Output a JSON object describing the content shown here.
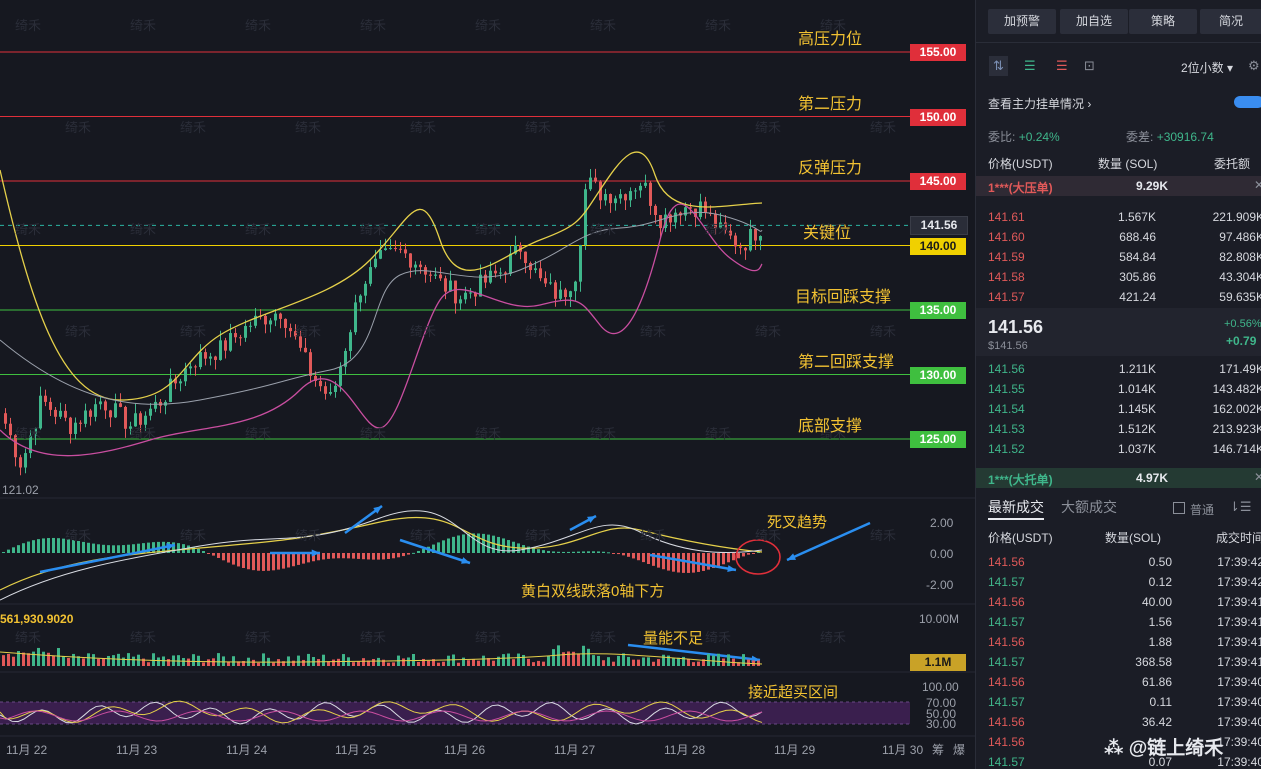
{
  "watermark": "绮禾",
  "levels": [
    {
      "label": "高压力位",
      "price": "155.00",
      "color": "#e02f3a"
    },
    {
      "label": "第二压力",
      "price": "150.00",
      "color": "#e02f3a"
    },
    {
      "label": "反弹压力",
      "price": "145.00",
      "color": "#e02f3a"
    },
    {
      "label": "关键位",
      "price": "140.00",
      "color": "#f0d000"
    },
    {
      "label": "目标回踩支撑",
      "price": "135.00",
      "color": "#3fbf3f"
    },
    {
      "label": "第二回踩支撑",
      "price": "130.00",
      "color": "#3fbf3f"
    },
    {
      "label": "底部支撑",
      "price": "125.00",
      "color": "#3fbf3f"
    }
  ],
  "current_price_tag": "141.56",
  "low_label": "121.02",
  "macd_axis": [
    "2.00",
    "0.00",
    "-2.00"
  ],
  "volume_label": "561,930.9020",
  "volume_axis": [
    "10.00M",
    "1.1M"
  ],
  "rsi_axis": [
    "100.00",
    "70.00",
    "50.00",
    "30.00"
  ],
  "dates": [
    "11月 22",
    "11月 23",
    "11月 24",
    "11月 25",
    "11月 26",
    "11月 27",
    "11月 28",
    "11月 29",
    "11月 30"
  ],
  "annotations": {
    "death_cross": "死叉趋势",
    "macd_note": "黄白双线跌落0轴下方",
    "volume_note": "量能不足",
    "rsi_note": "接近超买区间"
  },
  "axis_corner": [
    "筹",
    "爆"
  ],
  "panel": {
    "buttons": [
      "加预警",
      "加自选",
      "策略",
      "简况"
    ],
    "decimal_select": "2位小数",
    "depth_link": "查看主力挂单情况",
    "ratio_label": "委比:",
    "ratio_value": "+0.24%",
    "diff_label": "委差:",
    "diff_value": "+30916.74",
    "col_price": "价格(USDT)",
    "col_qty": "数量 (SOL)",
    "col_amount": "委托额",
    "big_ask": {
      "label": "1***(大压单)",
      "qty": "9.29K"
    },
    "asks": [
      {
        "price": "141.61",
        "qty": "1.567K",
        "amt": "221.909K"
      },
      {
        "price": "141.60",
        "qty": "688.46",
        "amt": "97.486K"
      },
      {
        "price": "141.59",
        "qty": "584.84",
        "amt": "82.808K"
      },
      {
        "price": "141.58",
        "qty": "305.86",
        "amt": "43.304K"
      },
      {
        "price": "141.57",
        "qty": "421.24",
        "amt": "59.635K"
      }
    ],
    "last_price": "141.56",
    "last_price_usd": "$141.56",
    "change_pct": "+0.56%",
    "change_abs": "+0.79",
    "bids": [
      {
        "price": "141.56",
        "qty": "1.211K",
        "amt": "171.49K"
      },
      {
        "price": "141.55",
        "qty": "1.014K",
        "amt": "143.482K"
      },
      {
        "price": "141.54",
        "qty": "1.145K",
        "amt": "162.002K"
      },
      {
        "price": "141.53",
        "qty": "1.512K",
        "amt": "213.923K"
      },
      {
        "price": "141.52",
        "qty": "1.037K",
        "amt": "146.714K"
      }
    ],
    "big_bid": {
      "label": "1***(大托单)",
      "qty": "4.97K"
    },
    "trade_tabs": [
      "最新成交",
      "大额成交"
    ],
    "ordinary_label": "普通",
    "trade_cols": [
      "价格(USDT)",
      "数量(SOL)",
      "成交时间"
    ],
    "trades": [
      {
        "price": "141.56",
        "qty": "0.50",
        "time": "17:39:42",
        "side": "sell"
      },
      {
        "price": "141.57",
        "qty": "0.12",
        "time": "17:39:42",
        "side": "buy"
      },
      {
        "price": "141.56",
        "qty": "40.00",
        "time": "17:39:41",
        "side": "sell"
      },
      {
        "price": "141.57",
        "qty": "1.56",
        "time": "17:39:41",
        "side": "buy"
      },
      {
        "price": "141.56",
        "qty": "1.88",
        "time": "17:39:41",
        "side": "sell"
      },
      {
        "price": "141.57",
        "qty": "368.58",
        "time": "17:39:41",
        "side": "buy"
      },
      {
        "price": "141.56",
        "qty": "61.86",
        "time": "17:39:40",
        "side": "sell"
      },
      {
        "price": "141.57",
        "qty": "0.11",
        "time": "17:39:40",
        "side": "buy"
      },
      {
        "price": "141.56",
        "qty": "36.42",
        "time": "17:39:40",
        "side": "sell"
      },
      {
        "price": "141.56",
        "qty": "",
        "time": "17:39:40",
        "side": "sell"
      },
      {
        "price": "141.57",
        "qty": "0.07",
        "time": "17:39:40",
        "side": "buy"
      }
    ]
  },
  "brand": "链上绮禾",
  "colors": {
    "up": "#3fb68b",
    "down": "#e15959",
    "accent": "#f2c232"
  }
}
